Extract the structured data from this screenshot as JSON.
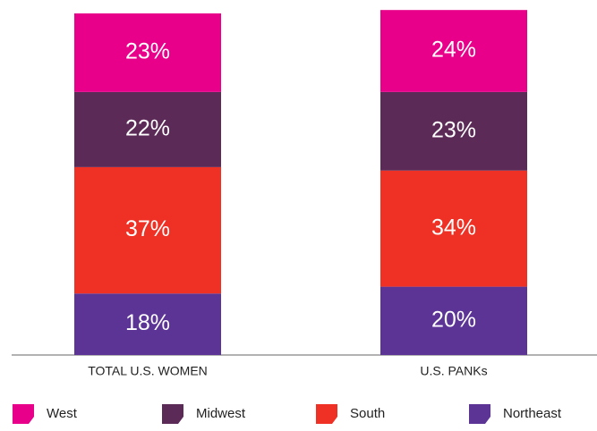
{
  "chart_data": {
    "type": "stacked_bar",
    "categories": [
      "TOTAL U.S. WOMEN",
      "U.S. PANKs"
    ],
    "series": [
      {
        "name": "West",
        "color": "#e8008a",
        "values": [
          23,
          24
        ],
        "value_labels": [
          "23%",
          "24%"
        ]
      },
      {
        "name": "Midwest",
        "color": "#5c2a57",
        "values": [
          22,
          23
        ],
        "value_labels": [
          "22%",
          "23%"
        ]
      },
      {
        "name": "South",
        "color": "#ee3124",
        "values": [
          37,
          34
        ],
        "value_labels": [
          "37%",
          "34%"
        ]
      },
      {
        "name": "Northeast",
        "color": "#5b3496",
        "values": [
          18,
          20
        ],
        "value_labels": [
          "18%",
          "20%"
        ]
      }
    ]
  }
}
